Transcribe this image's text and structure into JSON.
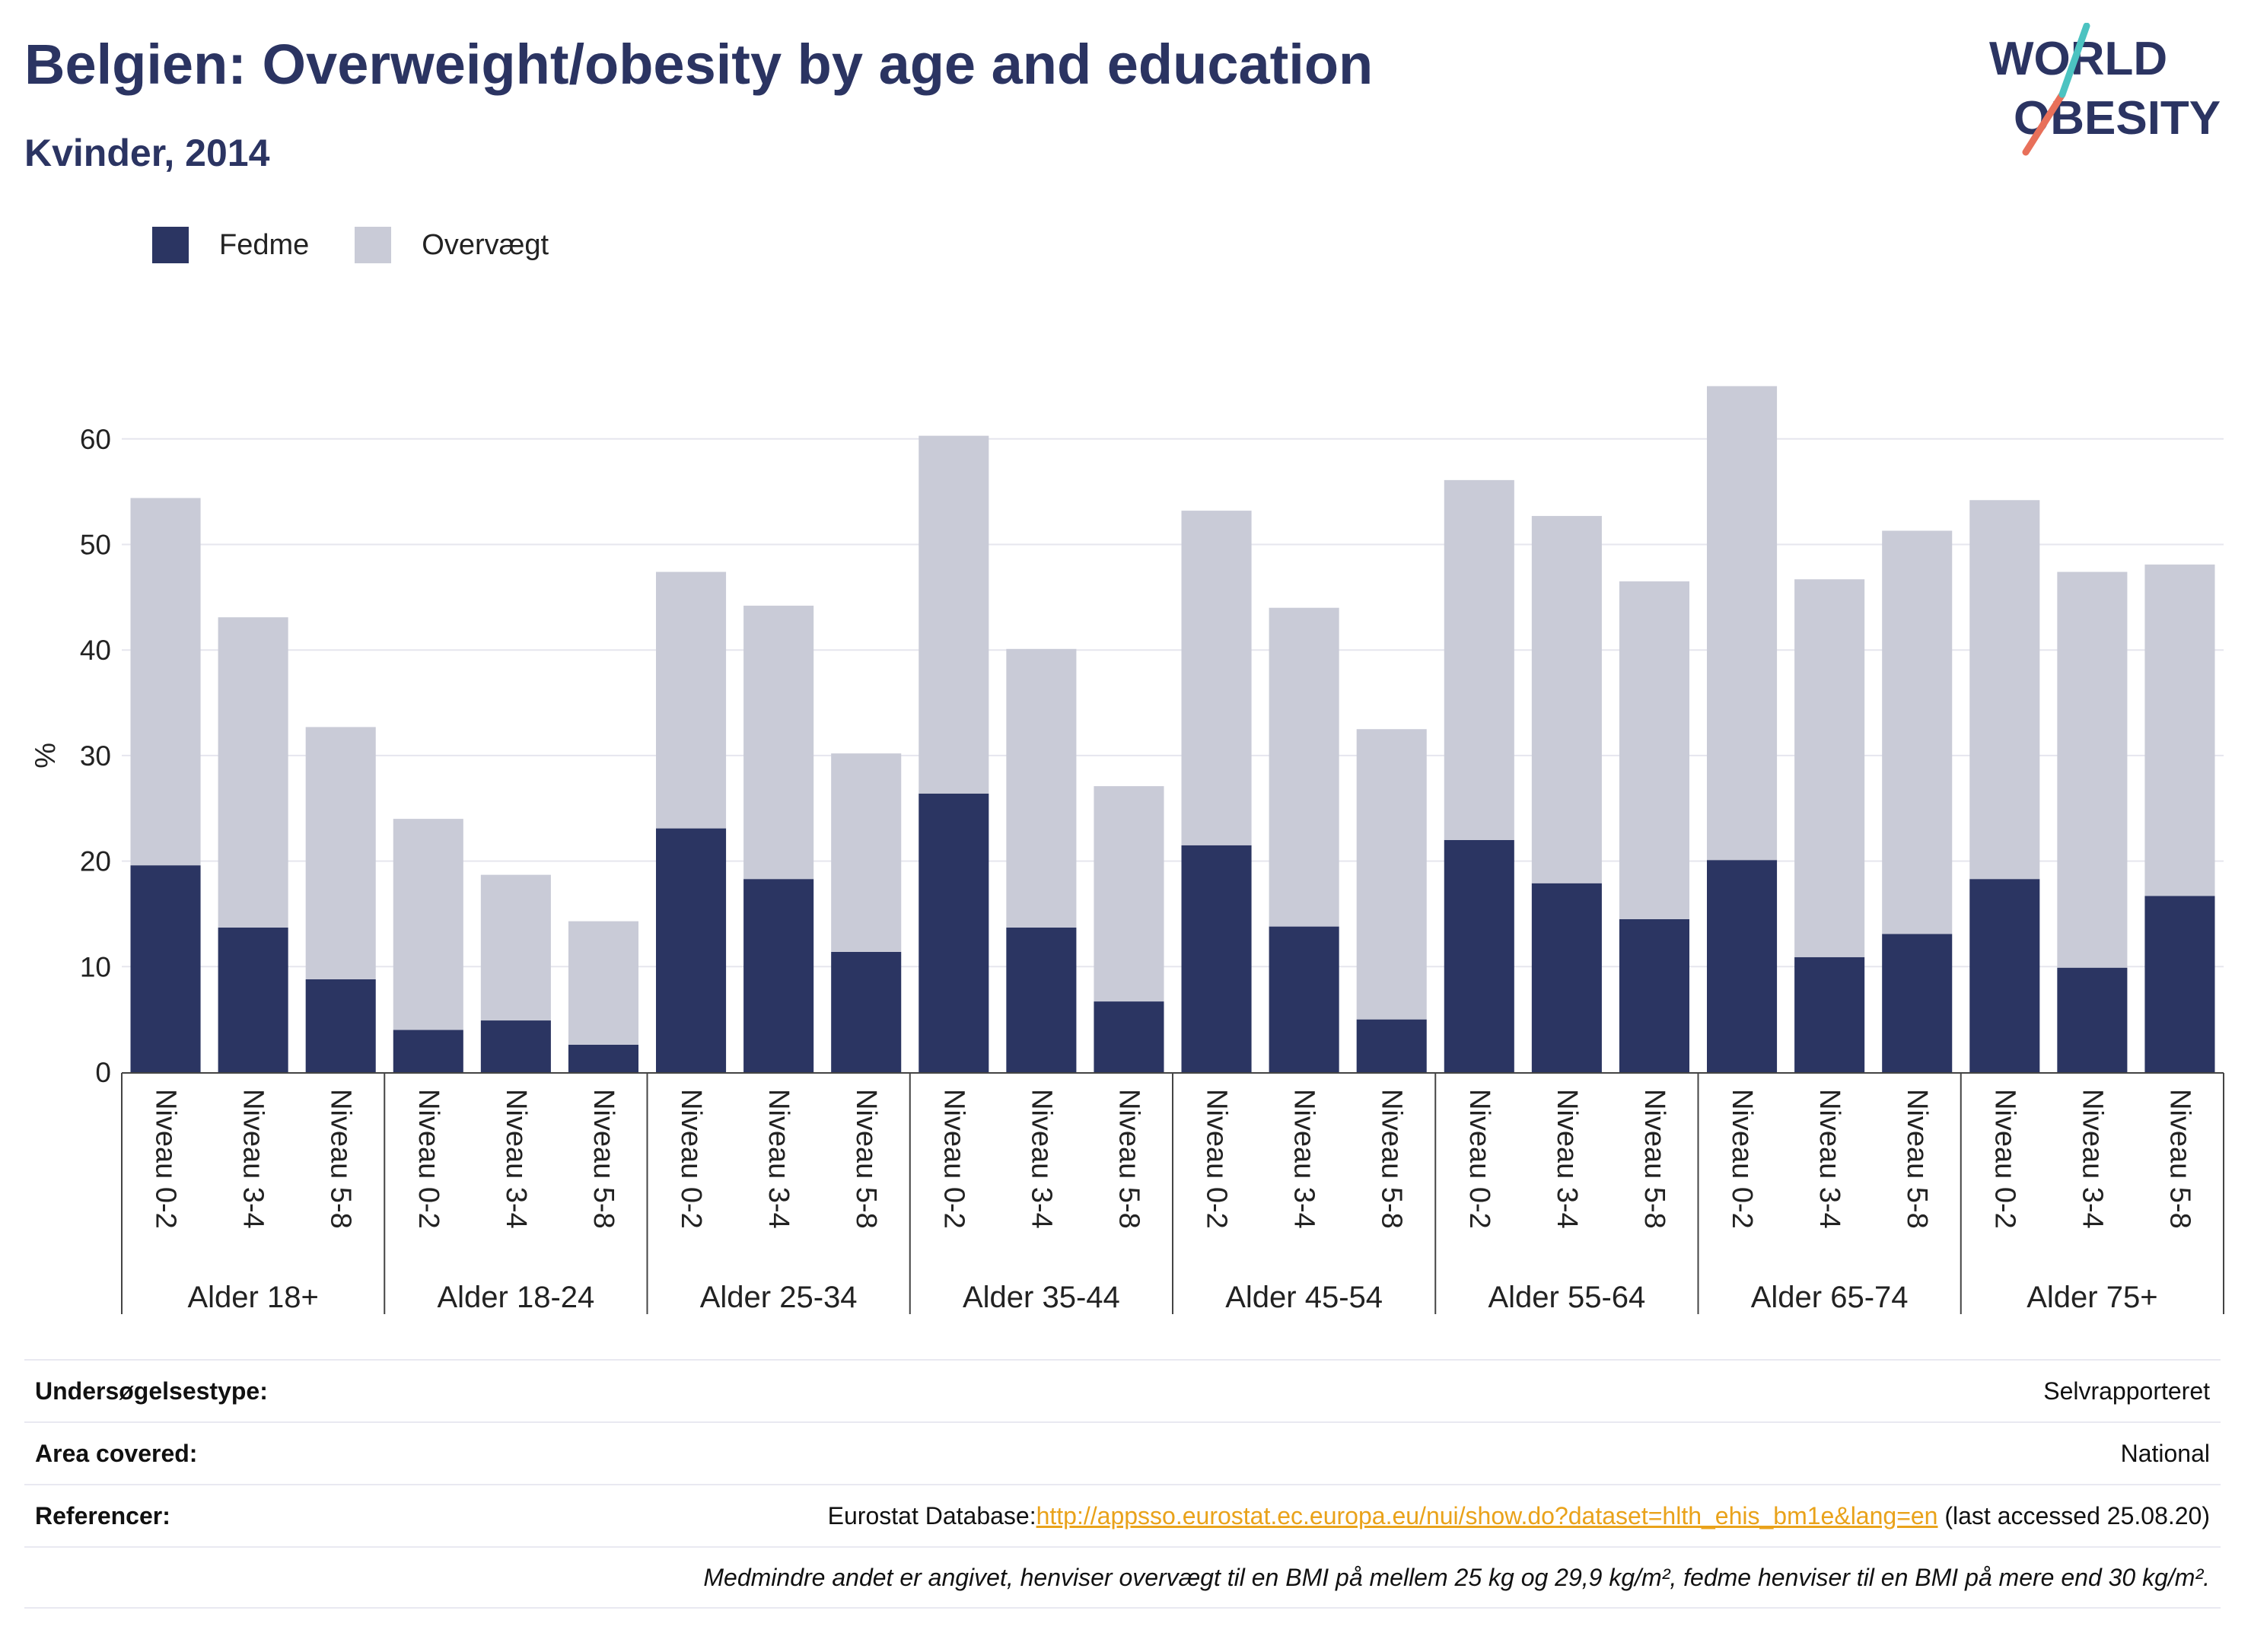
{
  "header": {
    "title": "Belgien: Overweight/obesity by age and education",
    "subtitle": "Kvinder, 2014"
  },
  "logo": {
    "line1": "WORLD",
    "line2": "OBESITY"
  },
  "colors": {
    "fedme": "#2b3562",
    "overvaegt": "#c9cbd7",
    "title": "#2b3462",
    "link": "#e9a21a"
  },
  "chart_data": {
    "type": "bar",
    "stacked": true,
    "ylabel": "%",
    "ylim": [
      0,
      65
    ],
    "yticks": [
      0,
      10,
      20,
      30,
      40,
      50,
      60
    ],
    "grid": true,
    "legend_position": "top-left",
    "groups": [
      "Alder 18+",
      "Alder 18-24",
      "Alder 25-34",
      "Alder 35-44",
      "Alder 45-54",
      "Alder 55-64",
      "Alder 65-74",
      "Alder 75+"
    ],
    "subcategories": [
      "Niveau 0-2",
      "Niveau 3-4",
      "Niveau 5-8"
    ],
    "series": [
      {
        "name": "Fedme",
        "values": [
          19.6,
          13.7,
          8.8,
          4.0,
          4.9,
          2.6,
          23.1,
          18.3,
          11.4,
          26.4,
          13.7,
          6.7,
          21.5,
          13.8,
          5.0,
          22.0,
          17.9,
          14.5,
          20.1,
          10.9,
          13.1,
          18.3,
          9.9,
          16.7
        ]
      },
      {
        "name": "Overvægt",
        "values": [
          34.8,
          29.4,
          23.9,
          20.0,
          13.8,
          11.7,
          24.3,
          25.9,
          18.8,
          33.9,
          26.4,
          20.4,
          31.7,
          30.2,
          27.5,
          34.1,
          34.8,
          32.0,
          44.9,
          35.8,
          38.2,
          35.9,
          37.5,
          31.4
        ]
      }
    ]
  },
  "info": {
    "rows": [
      {
        "label": "Undersøgelsestype:",
        "value": "Selvrapporteret"
      },
      {
        "label": "Area covered:",
        "value": "National"
      }
    ],
    "references_label": "Referencer:",
    "references_prefix": "Eurostat Database:",
    "references_link": "http://appsso.eurostat.ec.europa.eu/nui/show.do?dataset=hlth_ehis_bm1e&lang=en",
    "references_suffix": " (last accessed 25.08.20)",
    "note": "Medmindre andet er angivet, henviser overvægt til en BMI på mellem 25 kg og 29,9 kg/m², fedme henviser til en BMI på mere end 30 kg/m²."
  }
}
